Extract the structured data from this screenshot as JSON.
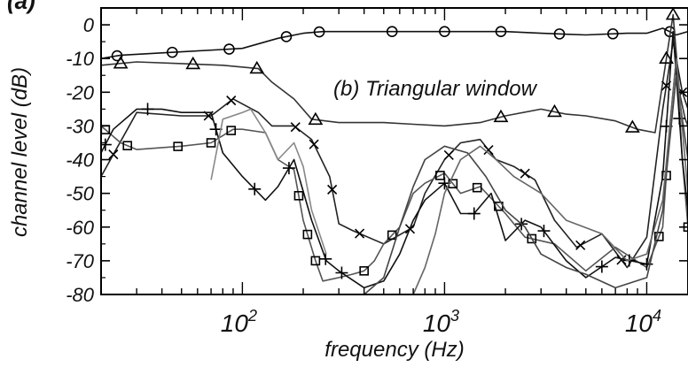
{
  "chart_data": {
    "type": "line",
    "panel_label": "(a)",
    "title": "",
    "annotation": "(b) Triangular window",
    "xlabel": "frequency (Hz)",
    "ylabel": "channel level (dB)",
    "x_scale": "log",
    "xlim": [
      20,
      16000
    ],
    "ylim": [
      -80,
      5
    ],
    "x_ticks": [
      {
        "value": 100,
        "base": "10",
        "exp": "2"
      },
      {
        "value": 1000,
        "base": "10",
        "exp": "3"
      },
      {
        "value": 10000,
        "base": "10",
        "exp": "4"
      }
    ],
    "y_ticks": [
      {
        "value": 0,
        "label": "0"
      },
      {
        "value": -10,
        "label": "-10"
      },
      {
        "value": -20,
        "label": "-20"
      },
      {
        "value": -30,
        "label": "-30"
      },
      {
        "value": -40,
        "label": "-40"
      },
      {
        "value": -50,
        "label": "-50"
      },
      {
        "value": -60,
        "label": "-60"
      },
      {
        "value": -70,
        "label": "-70"
      },
      {
        "value": -80,
        "label": "-80"
      }
    ],
    "grid": false,
    "legend": "none",
    "series": [
      {
        "marker": "circle",
        "color": "#111111",
        "x": [
          20,
          25,
          50,
          100,
          150,
          200,
          250,
          350,
          500,
          700,
          1000,
          1500,
          2000,
          3000,
          5000,
          8000,
          10000,
          12000,
          14000,
          16000
        ],
        "y": [
          -10,
          -9,
          -8,
          -7,
          -4,
          -2.5,
          -2,
          -2,
          -2,
          -2,
          -2,
          -2,
          -2,
          -2.5,
          -3,
          -2.5,
          -2.5,
          -1,
          -3,
          -2
        ],
        "markers_at": [
          24,
          45,
          86,
          165,
          240,
          550,
          1000,
          1900,
          3700,
          6800,
          13000
        ]
      },
      {
        "marker": "triangle",
        "color": "#333333",
        "x": [
          20,
          30,
          50,
          80,
          120,
          140,
          180,
          220,
          300,
          500,
          700,
          1000,
          1500,
          2000,
          3000,
          4000,
          5000,
          7000,
          9000,
          11000,
          12500,
          13500,
          14500,
          15500,
          16000
        ],
        "y": [
          -12,
          -11,
          -11.5,
          -12,
          -13,
          -17,
          -22,
          -28,
          -29,
          -29,
          -29.5,
          -30,
          -29,
          -27,
          -25,
          -26.5,
          -27,
          -28.5,
          -31,
          -32,
          -10,
          3,
          -20,
          -28,
          -30
        ],
        "markers_at": [
          25,
          57,
          118,
          230,
          1900,
          3500,
          8500,
          12500,
          13500
        ]
      },
      {
        "marker": "cross",
        "color": "#222222",
        "x": [
          20,
          30,
          50,
          70,
          90,
          120,
          140,
          180,
          220,
          270,
          300,
          350,
          500,
          700,
          800,
          1000,
          1200,
          1500,
          1800,
          2200,
          2800,
          3500,
          4500,
          6000,
          8000,
          10000,
          12000,
          13500,
          15000,
          16000
        ],
        "y": [
          -45,
          -26,
          -27,
          -27,
          -22,
          -26,
          -30,
          -30,
          -34,
          -45,
          -59,
          -61,
          -65,
          -60,
          -50,
          -40,
          -35,
          -34,
          -40,
          -42,
          -46,
          -58,
          -66,
          -62,
          -72,
          -63,
          -25,
          -5,
          -20,
          -25
        ],
        "markers_at": [
          23,
          68,
          88,
          183,
          226,
          278,
          380,
          675,
          1050,
          1650,
          2500,
          4700,
          7500,
          12500,
          15000
        ]
      },
      {
        "marker": "square",
        "color": "#555555",
        "x": [
          20,
          25,
          30,
          50,
          70,
          90,
          100,
          130,
          150,
          180,
          200,
          230,
          250,
          300,
          350,
          400,
          450,
          500,
          600,
          700,
          800,
          1000,
          1200,
          1500,
          2000,
          2500,
          3500,
          5000,
          7000,
          10000,
          12000,
          13000,
          14000,
          15000,
          16000
        ],
        "y": [
          -30,
          -35,
          -37,
          -36,
          -35,
          -31,
          -31,
          -32,
          -40,
          -43,
          -58,
          -70,
          -76,
          -75,
          -74,
          -73,
          -70,
          -65,
          -60,
          -50,
          -47,
          -44,
          -50,
          -48,
          -56,
          -63,
          -65,
          -73,
          -66,
          -72,
          -60,
          -30,
          -10,
          -40,
          -60
        ],
        "markers_at": [
          21,
          27,
          48,
          70,
          88,
          190,
          210,
          230,
          400,
          550,
          950,
          1100,
          1450,
          1850,
          2700,
          11500,
          12500,
          16000
        ]
      },
      {
        "marker": "plus",
        "color": "#111111",
        "x": [
          20,
          23,
          30,
          40,
          50,
          70,
          80,
          100,
          130,
          150,
          180,
          220,
          260,
          300,
          400,
          500,
          600,
          700,
          800,
          1000,
          1200,
          1400,
          1700,
          2000,
          2500,
          3000,
          4000,
          5000,
          7000,
          10000,
          12000,
          13500,
          15000,
          16000
        ],
        "y": [
          -38,
          -31,
          -25,
          -25,
          -26,
          -26,
          -38,
          -45,
          -52,
          -48,
          -40,
          -58,
          -70,
          -73,
          -78,
          -76,
          -68,
          -58,
          -52,
          -47,
          -56,
          -56,
          -50,
          -64,
          -58,
          -60,
          -70,
          -75,
          -69,
          -71,
          -45,
          -2,
          -40,
          -55
        ],
        "markers_at": [
          21,
          34,
          74,
          115,
          170,
          258,
          310,
          1000,
          1400,
          2400,
          3100,
          6000,
          8200,
          10000,
          12500,
          14500
        ]
      },
      {
        "marker": "none",
        "color": "#444444",
        "x": [
          400,
          500,
          600,
          700,
          800,
          1000,
          1300,
          1600,
          2000,
          2500,
          3000,
          4000,
          5000,
          7000,
          10000,
          12000,
          14000,
          16000
        ],
        "y": [
          -80,
          -75,
          -60,
          -48,
          -40,
          -36,
          -38,
          -45,
          -55,
          -60,
          -68,
          -72,
          -74,
          -78,
          -75,
          -55,
          -15,
          -40
        ]
      },
      {
        "marker": "none",
        "color": "#666666",
        "x": [
          700,
          800,
          900,
          1000,
          1200,
          1500,
          1800,
          2200,
          3000,
          4000,
          6000,
          8000,
          10000,
          12000,
          14000,
          16000
        ],
        "y": [
          -80,
          -72,
          -62,
          -50,
          -40,
          -36,
          -40,
          -45,
          -50,
          -58,
          -62,
          -70,
          -68,
          -52,
          -10,
          -50
        ]
      },
      {
        "marker": "none",
        "color": "#888888",
        "x": [
          70,
          80,
          100,
          110,
          130,
          150,
          180,
          200,
          220,
          260
        ],
        "y": [
          -46,
          -28,
          -26,
          -25,
          -32,
          -40,
          -35,
          -42,
          -55,
          -68
        ]
      }
    ]
  }
}
